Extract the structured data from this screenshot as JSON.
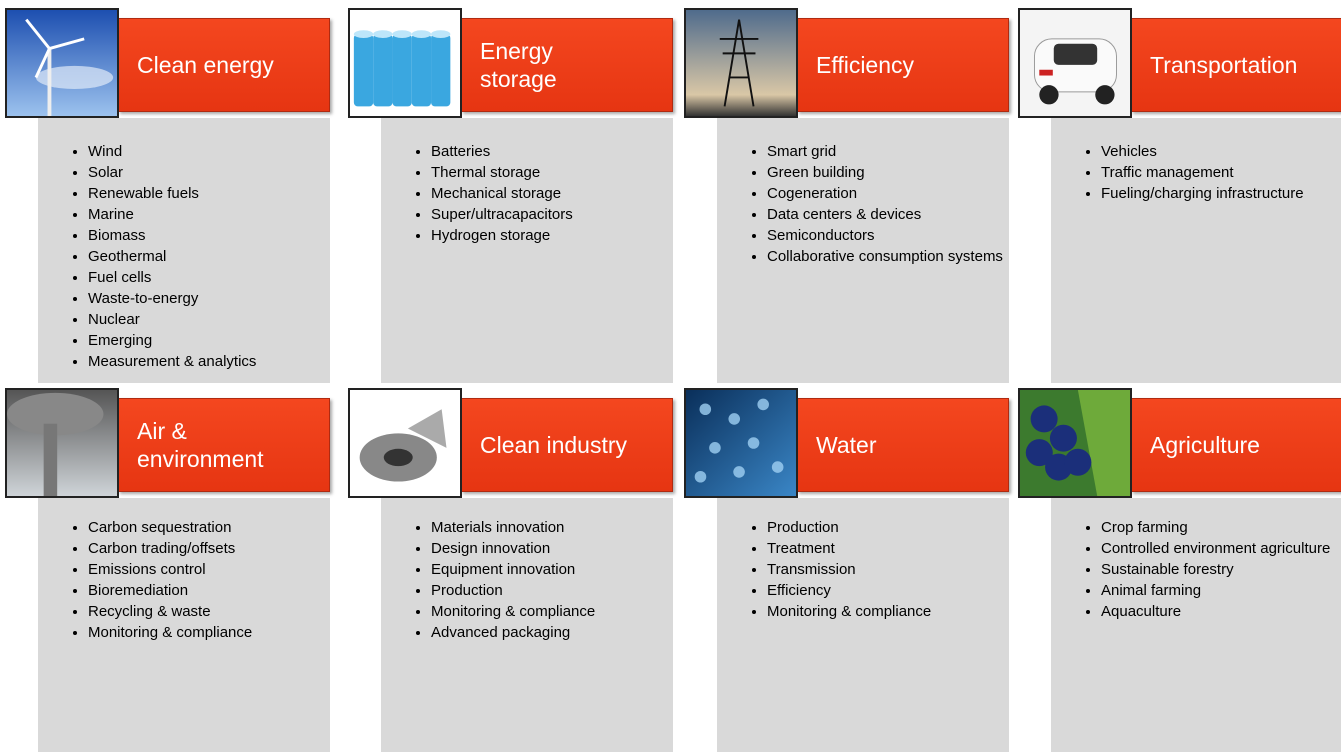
{
  "cards": [
    {
      "title": "Clean energy",
      "items": [
        "Wind",
        "Solar",
        "Renewable fuels",
        "Marine",
        "Biomass",
        "Geothermal",
        "Fuel cells",
        "Waste-to-energy",
        "Nuclear",
        "Emerging",
        "Measurement & analytics"
      ]
    },
    {
      "title": "Energy storage",
      "items": [
        "Batteries",
        "Thermal storage",
        "Mechanical storage",
        "Super/ultracapacitors",
        "Hydrogen storage"
      ]
    },
    {
      "title": "Efficiency",
      "items": [
        "Smart grid",
        "Green building",
        "Cogeneration",
        "Data centers & devices",
        "Semiconductors",
        "Collaborative consumption systems"
      ]
    },
    {
      "title": "Transportation",
      "items": [
        "Vehicles",
        "Traffic management",
        "Fueling/charging infrastructure"
      ]
    },
    {
      "title": "Air & environment",
      "items": [
        "Carbon sequestration",
        "Carbon trading/offsets",
        "Emissions control",
        "Bioremediation",
        "Recycling & waste",
        "Monitoring & compliance"
      ]
    },
    {
      "title": "Clean industry",
      "items": [
        "Materials innovation",
        "Design innovation",
        "Equipment innovation",
        "Production",
        "Monitoring & compliance",
        "Advanced packaging"
      ]
    },
    {
      "title": "Water",
      "items": [
        "Production",
        "Treatment",
        "Transmission",
        "Efficiency",
        "Monitoring & compliance"
      ]
    },
    {
      "title": "Agriculture",
      "items": [
        "Crop farming",
        "Controlled environment agriculture",
        "Sustainable forestry",
        "Animal farming",
        "Aquaculture"
      ]
    }
  ]
}
